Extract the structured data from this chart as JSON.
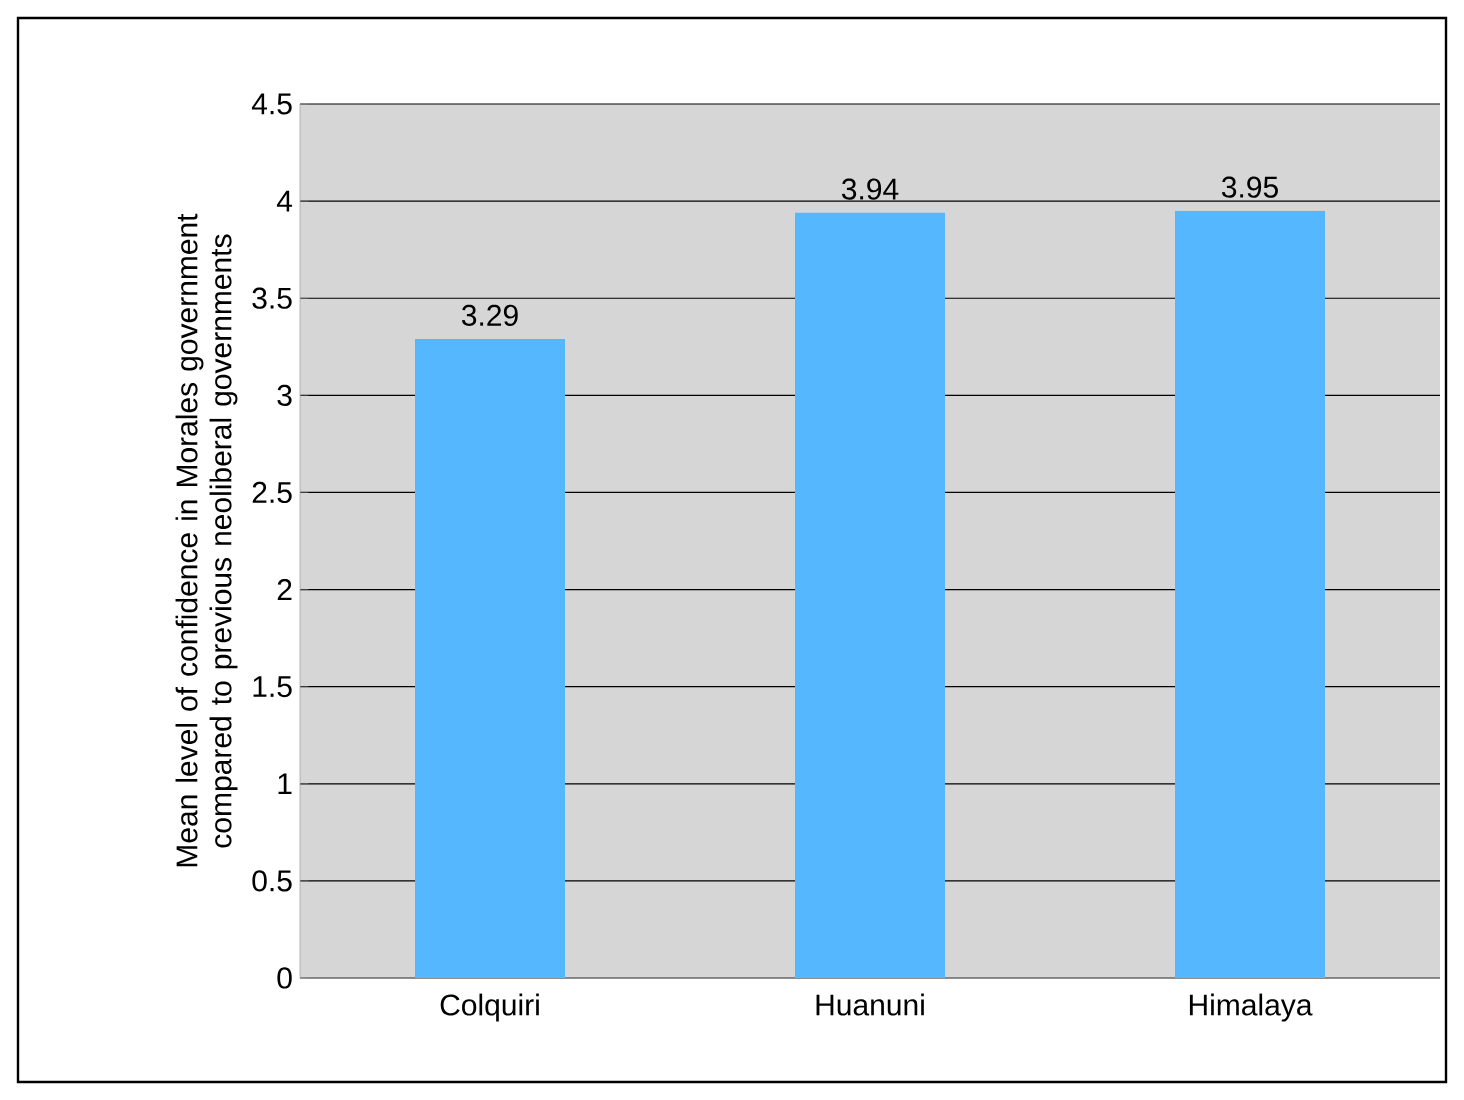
{
  "chart_data": {
    "type": "bar",
    "ylabel": "Mean level of confidence in Morales government compared to previous neoliberal governments",
    "categories": [
      "Colquiri",
      "Huanuni",
      "Himalaya"
    ],
    "values": [
      3.29,
      3.94,
      3.95
    ],
    "color": "#55b8ff",
    "ylim": [
      0,
      4.5
    ],
    "yticks": [
      0,
      0.5,
      1,
      1.5,
      2,
      2.5,
      3,
      3.5,
      4,
      4.5
    ],
    "grid": "y",
    "data_labels": true
  }
}
